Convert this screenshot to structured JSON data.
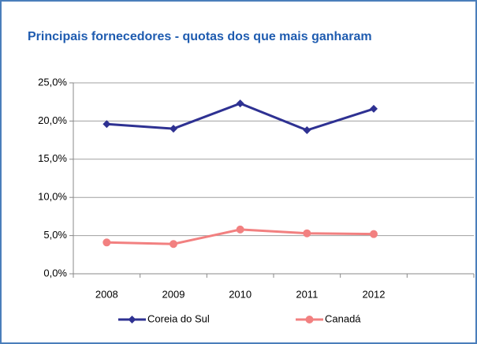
{
  "chart_data": {
    "type": "line",
    "title": "Principais fornecedores - quotas dos que mais ganharam",
    "categories": [
      "2008",
      "2009",
      "2010",
      "2011",
      "2012",
      null
    ],
    "series": [
      {
        "name": "Coreia do Sul",
        "color": "#2e3192",
        "marker": "diamond",
        "values": [
          19.6,
          19.0,
          22.3,
          18.8,
          21.6,
          null
        ]
      },
      {
        "name": "Canadá",
        "color": "#f28080",
        "marker": "circle",
        "values": [
          4.1,
          3.9,
          5.8,
          5.3,
          5.2,
          null
        ]
      }
    ],
    "ylim": [
      0,
      25
    ],
    "yticks": [
      {
        "value": 0,
        "label": "0,0%"
      },
      {
        "value": 5,
        "label": "5,0%"
      },
      {
        "value": 10,
        "label": "10,0%"
      },
      {
        "value": 15,
        "label": "15,0%"
      },
      {
        "value": 20,
        "label": "20,0%"
      },
      {
        "value": 25,
        "label": "25,0%"
      }
    ],
    "grid": true,
    "legend": "bottom"
  }
}
